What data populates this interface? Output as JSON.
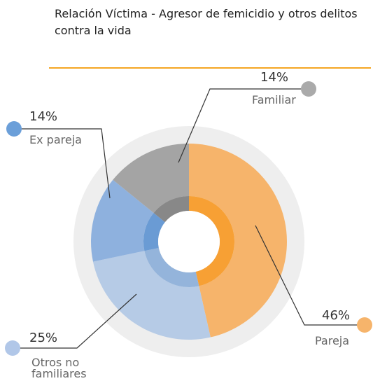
{
  "chart_data": {
    "type": "pie",
    "title": "Relación Víctima - Agresor de femicidio y otros delitos contra la vida",
    "categories": [
      "Pareja",
      "Otros no familiares",
      "Ex pareja",
      "Familiar"
    ],
    "values": [
      46,
      25,
      14,
      14
    ],
    "value_labels": [
      "46%",
      "25%",
      "14%",
      "14%"
    ],
    "colors": [
      "#f6b46b",
      "#b6cbe6",
      "#8eb1de",
      "#a4a4a4"
    ],
    "inner_colors": [
      "#f7a034",
      "#94b4db",
      "#6a9bd4",
      "#888888"
    ],
    "dot_colors": [
      "#f6b46b",
      "#b1c7e8",
      "#6b9fd9",
      "#aaaaaa"
    ]
  }
}
